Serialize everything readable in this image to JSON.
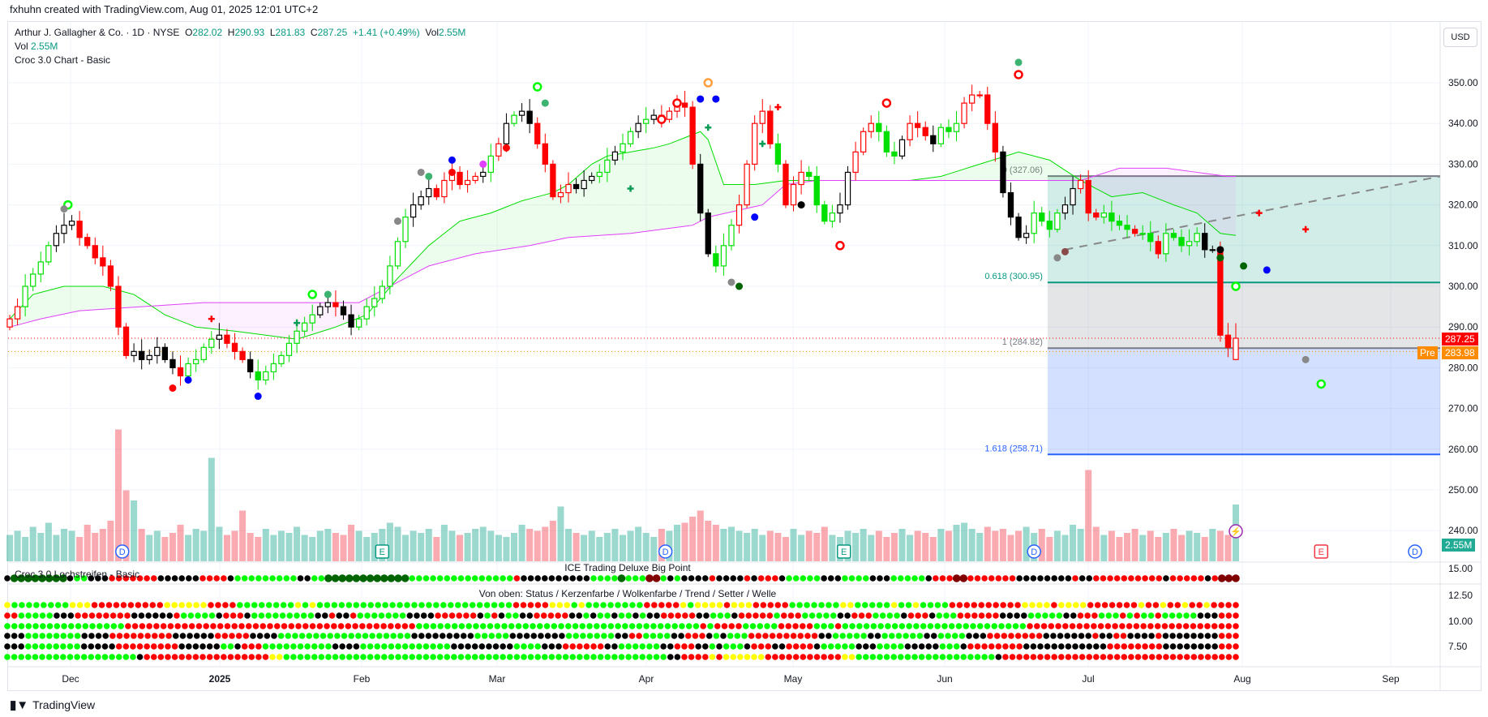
{
  "credit": "fxhuhn created with TradingView.com, Aug 01, 2025 12:01 UTC+2",
  "legend": {
    "symbol": "Arthur J. Gallagher & Co. · 1D · NYSE",
    "o_label": "O",
    "o": "282.02",
    "h_label": "H",
    "h": "290.93",
    "l_label": "L",
    "l": "281.83",
    "c_label": "C",
    "c": "287.25",
    "change": "+1.41 (+0.49%)",
    "vol_label": "Vol",
    "vol": "2.55M",
    "vol_line_label": "Vol",
    "vol_line_value": "2.55M",
    "indicator": "Croc 3.0 Chart - Basic"
  },
  "currency_button": "USD",
  "price_tags": {
    "last": "287.25",
    "pre_label": "Pre",
    "pre": "283.98",
    "volume": "2.55M"
  },
  "pane1_title": "Croc 3.0 Lochstreifen - Basic",
  "pane1_subtitle": "ICE Trading Deluxe Big Point",
  "pane2_title": "Von oben: Status / Kerzenfarbe / Wolkenfarbe / Trend / Setter / Welle",
  "pane_ticks": [
    "15.00",
    "12.50",
    "10.00",
    "7.50"
  ],
  "x_labels": [
    "Dec",
    "2025",
    "Feb",
    "Mar",
    "Apr",
    "May",
    "Jun",
    "Jul",
    "Aug",
    "Sep"
  ],
  "events": {
    "dividend": "D",
    "earnings": "E"
  },
  "footer_logo": "TradingView",
  "colors": {
    "up": "#089981",
    "down": "#f23645",
    "G": "#00ff00",
    "R": "#ff0000",
    "K": "#000000",
    "Y": "#ffff00",
    "D": "#006400",
    "M": "#800000",
    "fib0": "#787b86",
    "fib618": "#089981",
    "fib1": "#787b86",
    "fib1618": "#2962ff"
  },
  "chart_data": {
    "type": "candlestick",
    "title": "Arthur J. Gallagher & Co. · 1D · NYSE",
    "ylim": [
      240,
      355
    ],
    "price_ticks": [
      350,
      340,
      330,
      320,
      310,
      300,
      290,
      280,
      270,
      260,
      250,
      240
    ],
    "last_bar": {
      "open": 282.02,
      "high": 290.93,
      "low": 281.83,
      "close": 287.25
    },
    "closes": [
      292,
      295,
      300,
      303,
      306,
      310,
      313,
      315,
      316,
      312,
      310,
      307,
      305,
      300,
      290,
      283,
      284,
      282,
      283,
      285,
      282,
      280,
      278,
      281,
      282,
      285,
      287,
      288,
      286,
      284,
      282,
      279,
      277,
      279,
      281,
      283,
      286,
      289,
      291,
      293,
      295,
      296,
      295,
      293,
      290,
      292,
      295,
      297,
      300,
      305,
      311,
      317,
      320,
      322,
      324,
      322,
      326,
      328,
      325,
      326,
      327,
      328,
      332,
      335,
      340,
      342,
      343,
      340,
      335,
      330,
      322,
      323,
      325,
      324,
      326,
      327,
      328,
      331,
      333,
      335,
      338,
      340,
      341,
      342,
      341,
      343,
      345,
      344,
      330,
      318,
      308,
      305,
      310,
      315,
      320,
      330,
      340,
      343,
      335,
      330,
      320,
      325,
      328,
      327,
      320,
      316,
      318,
      320,
      328,
      333,
      338,
      340,
      338,
      333,
      332,
      336,
      340,
      339,
      337,
      335,
      339,
      338,
      340,
      345,
      347,
      347,
      340,
      333,
      323,
      317,
      312,
      313,
      318,
      316,
      314,
      318,
      320,
      324,
      326,
      318,
      317,
      318,
      316,
      315,
      314,
      313,
      313,
      311,
      308,
      313,
      312,
      310,
      311,
      313,
      309,
      309,
      288,
      285,
      287.25
    ],
    "volume_millions": [
      1.3,
      1.5,
      1.2,
      1.7,
      1.4,
      1.9,
      1.3,
      1.6,
      1.5,
      1.2,
      1.8,
      1.4,
      1.6,
      2.0,
      6.5,
      3.5,
      3.0,
      1.6,
      1.3,
      1.5,
      1.2,
      1.4,
      1.8,
      1.3,
      1.6,
      1.5,
      5.1,
      1.7,
      1.3,
      1.5,
      2.5,
      1.4,
      1.2,
      1.6,
      1.3,
      1.5,
      1.4,
      1.7,
      1.3,
      1.2,
      1.5,
      1.6,
      1.4,
      1.3,
      1.8,
      1.5,
      1.2,
      1.4,
      1.6,
      1.9,
      1.7,
      1.3,
      1.5,
      1.4,
      1.6,
      1.2,
      1.8,
      1.5,
      1.3,
      1.4,
      1.6,
      1.7,
      1.5,
      1.3,
      1.2,
      1.4,
      1.8,
      1.6,
      1.5,
      1.7,
      2.0,
      2.7,
      1.6,
      1.4,
      1.3,
      1.5,
      1.2,
      1.4,
      1.6,
      1.3,
      1.5,
      1.7,
      1.4,
      1.2,
      1.6,
      1.5,
      1.8,
      1.9,
      2.2,
      2.5,
      2.0,
      1.8,
      1.6,
      1.7,
      1.5,
      1.4,
      1.6,
      1.3,
      1.5,
      1.4,
      1.2,
      1.6,
      1.3,
      1.5,
      1.4,
      1.7,
      1.3,
      1.2,
      1.5,
      1.4,
      1.6,
      1.3,
      1.5,
      1.2,
      1.4,
      1.6,
      1.3,
      1.5,
      1.4,
      1.2,
      1.6,
      1.5,
      1.8,
      1.9,
      1.6,
      1.4,
      1.7,
      1.5,
      1.6,
      1.3,
      1.5,
      1.7,
      1.4,
      1.6,
      1.2,
      1.5,
      1.3,
      1.8,
      1.6,
      4.5,
      1.7,
      1.3,
      1.5,
      1.2,
      1.4,
      1.6,
      1.3,
      1.5,
      1.2,
      1.4,
      1.6,
      1.3,
      1.5,
      1.4,
      1.2,
      1.6,
      1.5,
      1.3,
      2.8,
      2.5,
      2.55
    ],
    "band_green": [
      [
        0,
        292
      ],
      [
        3,
        298
      ],
      [
        7,
        300
      ],
      [
        12,
        300
      ],
      [
        16,
        298
      ],
      [
        20,
        293
      ],
      [
        24,
        290
      ],
      [
        29,
        289
      ],
      [
        33,
        288
      ],
      [
        37,
        287
      ],
      [
        42,
        290
      ],
      [
        46,
        293
      ],
      [
        50,
        302
      ],
      [
        54,
        310
      ],
      [
        58,
        316
      ],
      [
        62,
        318
      ],
      [
        66,
        321
      ],
      [
        70,
        323
      ],
      [
        72,
        325
      ],
      [
        75,
        330
      ],
      [
        77,
        332
      ],
      [
        80,
        333
      ],
      [
        83,
        334
      ],
      [
        85,
        335
      ],
      [
        89,
        338
      ],
      [
        90,
        336
      ],
      [
        92,
        325
      ],
      [
        96,
        325
      ],
      [
        100,
        326
      ],
      [
        104,
        326
      ],
      [
        108,
        326
      ],
      [
        112,
        326
      ],
      [
        116,
        326
      ],
      [
        120,
        327
      ],
      [
        125,
        330
      ],
      [
        130,
        333
      ],
      [
        134,
        331
      ],
      [
        138,
        326
      ],
      [
        142,
        322
      ],
      [
        146,
        323
      ],
      [
        150,
        320
      ],
      [
        153,
        318
      ],
      [
        156,
        313
      ],
      [
        160,
        312
      ],
      [
        166,
        312
      ],
      [
        169,
        300
      ]
    ],
    "band_magenta": [
      [
        0,
        290
      ],
      [
        4,
        292
      ],
      [
        9,
        294
      ],
      [
        17,
        295
      ],
      [
        25,
        296
      ],
      [
        33,
        296
      ],
      [
        41,
        296
      ],
      [
        45,
        296
      ],
      [
        49,
        300
      ],
      [
        54,
        305
      ],
      [
        60,
        308
      ],
      [
        67,
        310
      ],
      [
        72,
        312
      ],
      [
        80,
        313
      ],
      [
        88,
        315
      ],
      [
        90,
        317
      ],
      [
        97,
        320
      ],
      [
        100,
        325
      ],
      [
        104,
        326
      ],
      [
        117,
        326
      ],
      [
        130,
        326
      ],
      [
        138,
        326
      ],
      [
        143,
        329
      ],
      [
        149,
        329
      ],
      [
        157,
        327
      ],
      [
        166,
        327
      ],
      [
        167,
        319
      ],
      [
        169,
        316
      ]
    ],
    "trend_line": {
      "from": [
        136,
        309
      ],
      "to": [
        197,
        327
      ]
    },
    "fib": {
      "start_bar": 135,
      "levels": [
        {
          "ratio": "0",
          "price": 327.06,
          "label": "0 (327.06)"
        },
        {
          "ratio": "0.618",
          "price": 300.95,
          "label": "0.618 (300.95)"
        },
        {
          "ratio": "1",
          "price": 284.82,
          "label": "1 (284.82)"
        },
        {
          "ratio": "1.618",
          "price": 258.71,
          "label": "1.618 (258.71)"
        }
      ]
    },
    "last_price": 287.25,
    "pre_price": 283.98,
    "markers": [
      [
        7.5,
        320,
        "ring",
        "#00ff00"
      ],
      [
        7,
        319,
        "dot",
        "#888888"
      ],
      [
        21,
        275,
        "dot",
        "#ff0000"
      ],
      [
        23,
        277,
        "dot",
        "#0000ff"
      ],
      [
        26,
        292,
        "cross",
        "#ff0000"
      ],
      [
        32,
        273,
        "dot",
        "#0000ff"
      ],
      [
        37,
        291,
        "cross",
        "#0a9b55"
      ],
      [
        39,
        298,
        "ring",
        "#00ff00"
      ],
      [
        41,
        298,
        "dot",
        "#3cb371"
      ],
      [
        50,
        316,
        "dot",
        "#888888"
      ],
      [
        53,
        328,
        "dot",
        "#888888"
      ],
      [
        54,
        327,
        "dot",
        "#3cb371"
      ],
      [
        57,
        331,
        "dot",
        "#0000ff"
      ],
      [
        57,
        328,
        "dot",
        "#ff0000"
      ],
      [
        61,
        330,
        "dot",
        "#e040fb"
      ],
      [
        64,
        334,
        "dot",
        "#ff0000"
      ],
      [
        68,
        349,
        "ring",
        "#00ff00"
      ],
      [
        69,
        345,
        "dot",
        "#3cb371"
      ],
      [
        80,
        324,
        "cross",
        "#0a9b55"
      ],
      [
        84,
        341,
        "ring",
        "#ff0000"
      ],
      [
        86,
        345,
        "ring",
        "#ff0000"
      ],
      [
        89,
        346,
        "dot",
        "#0000ff"
      ],
      [
        90,
        350,
        "ring",
        "#ff9f40"
      ],
      [
        90,
        339,
        "cross",
        "#0a9b55"
      ],
      [
        91,
        346,
        "dot",
        "#0000ff"
      ],
      [
        93,
        301,
        "dot",
        "#888888"
      ],
      [
        94,
        300,
        "dot",
        "#006400"
      ],
      [
        96,
        317,
        "dot",
        "#0000ff"
      ],
      [
        97,
        335,
        "cross",
        "#0a9b55"
      ],
      [
        99,
        344,
        "cross",
        "#ff0000"
      ],
      [
        102,
        320,
        "dot",
        "#000000"
      ],
      [
        107,
        310,
        "ring",
        "#ff0000"
      ],
      [
        113,
        345,
        "ring",
        "#ff0000"
      ],
      [
        130,
        355,
        "dot",
        "#3cb371"
      ],
      [
        130,
        352,
        "ring",
        "#ff0000"
      ],
      [
        135,
        307,
        "dot",
        "#888888"
      ],
      [
        136,
        308.5,
        "dot",
        "#8b4a4a"
      ],
      [
        156,
        309,
        "dot",
        "#000000"
      ],
      [
        156,
        307,
        "dot",
        "#006400"
      ],
      [
        158,
        300,
        "ring",
        "#00ff00"
      ],
      [
        159,
        305,
        "dot",
        "#006400"
      ],
      [
        161,
        318,
        "cross",
        "#ff0000"
      ],
      [
        162,
        304,
        "dot",
        "#0000ff"
      ],
      [
        167,
        314,
        "cross",
        "#ff0000"
      ],
      [
        167,
        282,
        "dot",
        "#888888"
      ],
      [
        169,
        276,
        "ring",
        "#00ff00"
      ]
    ],
    "dot_rows": [
      "KDDDDDDDDKGGKKKRRRRRRRKKKKKKRRRRKGGGGGGGGGKKGGDDDDDDDDDDDDGGGGGGGGGGGGGGGRKKKKKKKKKKGGGGDGGGMMGKGKKKKRKKKKRKRRRKGGGGGKKKGGGGKKKGGGGGKRRRMMRRRRRRRKKKKKKKKRKKRRRRRRRRRRKRRRRRKRMMM",
      "YGGGGGGGGYYYRRRRRRRRRRYYYYYYRRRRGGGGGGGGYGYGGGGGGGGGGGGGGGGGGGGGGGGGGGRRRRRYYYGYGGGGGGGGRRRRRYGYYYYRYYYRRRRRGGGGGGGYYGGGGGYGGYGGGGRRRRRRRRRRYYYYRYYYYRRRRRRRYRRYRRYRRYRRRR",
      "RRGGGGGKKKRRRRRRRRKKKKKKRGGGGGKRRRKGGGGGGGGGKKRKKRGGGGGGGKKKKRRRRRRKGRKGGKKRRRRRKKGKGGKGGKGKKRRRRRKKGGGKRRRRRGRRRGGGGGKKRRRGGGGKRRRKGGGRRRRRRKKKKGGGGGKKRRRGGGRGRGGRGGGGGKKKRRR",
      "GGGGGGGGGGGGGGGGGRRRRRRRRRRRRRRRRRRRRRRRRRRRRRRRRRRRRRRRRRGGGGGGGGGGGGGGGGGGGGGGGGGGGGGGGGGGGGGGGGRGRRRRGGGGGRRRRRGGGRGGGGGGGGGGGGGGGGGGGGGGGGGGRRRRRRRRRRRRRRRRRRRRRRRRRRRRRR",
      "KKKGGGGGGGGKKKKRRRRRRRRRKKKKKKRRRRRKKKKGGGGGGGGGGGGGGGGGGGKKKKKKKKKGGGGGKKKKKKKKGGGGGGGKKRRGGGGKKRRRKGKGGGRRRRRRRRRRKKGGGGGKKGGGGGGKKGGGGKKKRRRRRRRRKKKKKKKRKKRRKKKKRKKKKKKKKRRR",
      "KKKGGGGGGGGKKKKKRRRRRRRRRKKKKKKGGKRRRGGGGGGGGGGKKKKGGGGGGGGGGGGGKKKKKKKKKGGGGKKKRRRRRRKKGGGGGGKKRRRKKGKGGGKRRRKKRRRRKGGGGGKKKGGGGKKKKKGGGKRRRRRRRRKKKKKKKKKKKKRRRRRRRRKKKKKKKKRRR",
      "GGGGGGGGGGGGGGGGGGGKRRRRRRRRRRRRRRRRRRYYGGGGGGGGGGGGGGGGGGGGGGGGGGGGGGGGGGGGGGGGGGGGGGGGGGGGGGGKKRRRRYRYYYYYYRRRRRRRRRRRYYGGGGGGGGGGGGGGGGGGGGKRRRRRRRRRRRRRRRRRRRRRRRRRRRRRRRRRR"
    ],
    "dot_rows_note_legend": "Von oben: Status / Kerzenfarbe / Wolkenfarbe / Trend / Setter / Welle",
    "events": [
      [
        14.5,
        "D"
      ],
      [
        48,
        "E"
      ],
      [
        84.5,
        "D"
      ],
      [
        107.5,
        "E"
      ],
      [
        132,
        "D"
      ],
      [
        169,
        "E"
      ],
      [
        195,
        "D"
      ]
    ]
  }
}
